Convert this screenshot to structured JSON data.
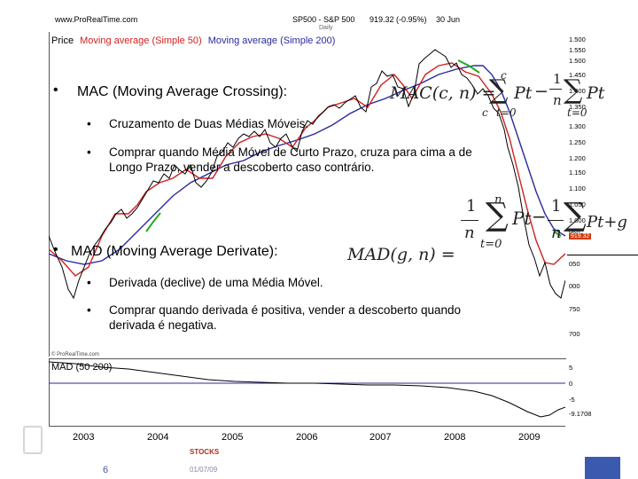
{
  "header": {
    "site": "www.ProRealTime.com",
    "symbol": "SP500 - S&P 500",
    "quote": "919.32 (-0.95%)",
    "date": "30 Jun",
    "period": "Daily"
  },
  "legend": {
    "price": "Price",
    "ma50": "Moving average (Simple 50)",
    "ma200": "Moving average (Simple 200)"
  },
  "price_axis": [
    "1.500",
    "1.550",
    "1.500",
    "1.450",
    "1.400",
    "1.350",
    "1.300",
    "1.250",
    "1.200",
    "1.150",
    "1.100",
    "1.050",
    "1.000",
    "950",
    "919.32",
    "050",
    "000",
    "750",
    "700"
  ],
  "mad_panel": {
    "title": "MAD (50 200)",
    "axis": [
      "5",
      "0",
      "-5",
      "-9.1708"
    ],
    "watermark": "© ProRealTime.com"
  },
  "years": [
    "2003",
    "2004",
    "2005",
    "2006",
    "2007",
    "2008",
    "2009"
  ],
  "footer": {
    "label": "STOCKS",
    "code": "01/07/09",
    "page": "6"
  },
  "colors": {
    "price": "#000000",
    "ma50": "#d02020",
    "ma200": "#2828a0",
    "highlight": "#22aa22",
    "badge": "#d03a10"
  },
  "slide": {
    "mac": {
      "title": "MAC (Moving Average Crossing):",
      "point1": "Cruzamento de Duas Médias Móveis.",
      "point2_line1": "Comprar quando Média Móvel de Curto Prazo, cruza para cima a de",
      "point2_line2": "Longo Prazo, vender a descoberto caso contrário.",
      "formula_lhs": "MAC(c, n) =",
      "sym_c": "c",
      "sym_n": "n",
      "sym_t": "t=0",
      "sym_Pt": "Pt",
      "sym_one": "1",
      "sym_minus": "−"
    },
    "mad": {
      "title": "MAD (Moving Average Derivate):",
      "point1": "Derivada (declive) de uma Média Móvel.",
      "point2_line1": "Comprar quando derivada é positiva, vender a descoberto quando",
      "point2_line2": "derivada é negativa.",
      "formula_lhs": "MAD(g, n) =",
      "sym_n": "n",
      "sym_t": "t=0",
      "sym_Pt": "Pt",
      "sym_Ptg": "Pt+g",
      "sym_one": "1",
      "sym_minus": "−"
    },
    "bullet": "•"
  }
}
